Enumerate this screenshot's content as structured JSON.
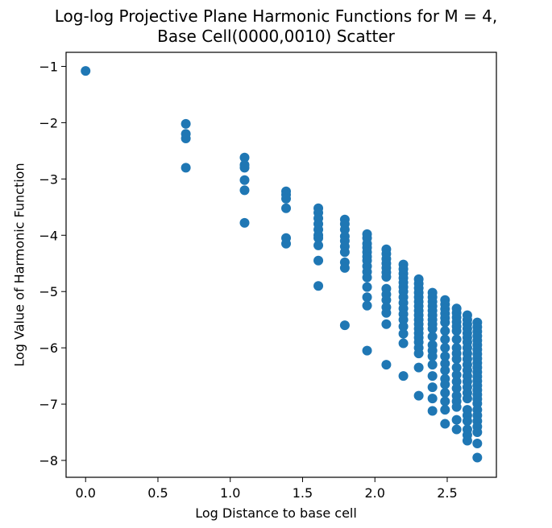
{
  "chart_data": {
    "type": "scatter",
    "title_lines": [
      "Log-log Projective Plane Harmonic Functions for M = 4,",
      "Base Cell(0000,0010) Scatter"
    ],
    "xlabel": "Log Distance to base cell",
    "ylabel": "Log Value of Harmonic Function",
    "xlim": [
      -0.135,
      2.84
    ],
    "ylim": [
      -8.3,
      -0.75
    ],
    "xticks": [
      0.0,
      0.5,
      1.0,
      1.5,
      2.0,
      2.5
    ],
    "xtick_labels": [
      "0.0",
      "0.5",
      "1.0",
      "1.5",
      "2.0",
      "2.5"
    ],
    "yticks": [
      -1,
      -2,
      -3,
      -4,
      -5,
      -6,
      -7,
      -8
    ],
    "ytick_labels": [
      "−1",
      "−2",
      "−3",
      "−4",
      "−5",
      "−6",
      "−7",
      "−8"
    ],
    "grid": false,
    "marker_color": "#1f77b4",
    "series": [
      {
        "points": [
          [
            0.0,
            -1.08
          ],
          [
            0.693,
            -2.02
          ],
          [
            0.693,
            -2.2
          ],
          [
            0.693,
            -2.28
          ],
          [
            0.693,
            -2.8
          ],
          [
            1.099,
            -2.62
          ],
          [
            1.099,
            -2.75
          ],
          [
            1.099,
            -2.8
          ],
          [
            1.099,
            -3.02
          ],
          [
            1.099,
            -3.2
          ],
          [
            1.099,
            -3.78
          ],
          [
            1.386,
            -3.22
          ],
          [
            1.386,
            -3.28
          ],
          [
            1.386,
            -3.35
          ],
          [
            1.386,
            -3.52
          ],
          [
            1.386,
            -4.05
          ],
          [
            1.386,
            -4.15
          ],
          [
            1.609,
            -3.52
          ],
          [
            1.609,
            -3.6
          ],
          [
            1.609,
            -3.7
          ],
          [
            1.609,
            -3.8
          ],
          [
            1.609,
            -3.9
          ],
          [
            1.609,
            -4.0
          ],
          [
            1.609,
            -4.05
          ],
          [
            1.609,
            -4.18
          ],
          [
            1.609,
            -4.45
          ],
          [
            1.609,
            -4.9
          ],
          [
            1.792,
            -3.72
          ],
          [
            1.792,
            -3.8
          ],
          [
            1.792,
            -3.9
          ],
          [
            1.792,
            -4.02
          ],
          [
            1.792,
            -4.1
          ],
          [
            1.792,
            -4.2
          ],
          [
            1.792,
            -4.3
          ],
          [
            1.792,
            -4.48
          ],
          [
            1.792,
            -4.58
          ],
          [
            1.792,
            -5.6
          ],
          [
            1.946,
            -3.98
          ],
          [
            1.946,
            -4.05
          ],
          [
            1.946,
            -4.15
          ],
          [
            1.946,
            -4.22
          ],
          [
            1.946,
            -4.3
          ],
          [
            1.946,
            -4.38
          ],
          [
            1.946,
            -4.45
          ],
          [
            1.946,
            -4.55
          ],
          [
            1.946,
            -4.65
          ],
          [
            1.946,
            -4.75
          ],
          [
            1.946,
            -4.92
          ],
          [
            1.946,
            -5.1
          ],
          [
            1.946,
            -5.25
          ],
          [
            1.946,
            -6.05
          ],
          [
            2.079,
            -4.25
          ],
          [
            2.079,
            -4.33
          ],
          [
            2.079,
            -4.42
          ],
          [
            2.079,
            -4.5
          ],
          [
            2.079,
            -4.58
          ],
          [
            2.079,
            -4.66
          ],
          [
            2.079,
            -4.74
          ],
          [
            2.079,
            -4.95
          ],
          [
            2.079,
            -5.05
          ],
          [
            2.079,
            -5.15
          ],
          [
            2.079,
            -5.28
          ],
          [
            2.079,
            -5.38
          ],
          [
            2.079,
            -5.58
          ],
          [
            2.079,
            -6.3
          ],
          [
            2.197,
            -4.52
          ],
          [
            2.197,
            -4.6
          ],
          [
            2.197,
            -4.68
          ],
          [
            2.197,
            -4.76
          ],
          [
            2.197,
            -4.84
          ],
          [
            2.197,
            -4.92
          ],
          [
            2.197,
            -5.0
          ],
          [
            2.197,
            -5.1
          ],
          [
            2.197,
            -5.2
          ],
          [
            2.197,
            -5.3
          ],
          [
            2.197,
            -5.4
          ],
          [
            2.197,
            -5.5
          ],
          [
            2.197,
            -5.62
          ],
          [
            2.197,
            -5.75
          ],
          [
            2.197,
            -5.92
          ],
          [
            2.197,
            -6.5
          ],
          [
            2.303,
            -4.78
          ],
          [
            2.303,
            -4.86
          ],
          [
            2.303,
            -4.94
          ],
          [
            2.303,
            -5.02
          ],
          [
            2.303,
            -5.1
          ],
          [
            2.303,
            -5.18
          ],
          [
            2.303,
            -5.26
          ],
          [
            2.303,
            -5.34
          ],
          [
            2.303,
            -5.42
          ],
          [
            2.303,
            -5.5
          ],
          [
            2.303,
            -5.58
          ],
          [
            2.303,
            -5.66
          ],
          [
            2.303,
            -5.74
          ],
          [
            2.303,
            -5.82
          ],
          [
            2.303,
            -5.9
          ],
          [
            2.303,
            -6.0
          ],
          [
            2.303,
            -6.1
          ],
          [
            2.303,
            -6.35
          ],
          [
            2.303,
            -6.85
          ],
          [
            2.398,
            -5.02
          ],
          [
            2.398,
            -5.1
          ],
          [
            2.398,
            -5.18
          ],
          [
            2.398,
            -5.26
          ],
          [
            2.398,
            -5.34
          ],
          [
            2.398,
            -5.42
          ],
          [
            2.398,
            -5.5
          ],
          [
            2.398,
            -5.58
          ],
          [
            2.398,
            -5.66
          ],
          [
            2.398,
            -5.8
          ],
          [
            2.398,
            -5.95
          ],
          [
            2.398,
            -6.05
          ],
          [
            2.398,
            -6.15
          ],
          [
            2.398,
            -6.3
          ],
          [
            2.398,
            -6.5
          ],
          [
            2.398,
            -6.7
          ],
          [
            2.398,
            -6.9
          ],
          [
            2.398,
            -7.12
          ],
          [
            2.485,
            -5.15
          ],
          [
            2.485,
            -5.23
          ],
          [
            2.485,
            -5.31
          ],
          [
            2.485,
            -5.39
          ],
          [
            2.485,
            -5.47
          ],
          [
            2.485,
            -5.55
          ],
          [
            2.485,
            -5.7
          ],
          [
            2.485,
            -5.85
          ],
          [
            2.485,
            -6.0
          ],
          [
            2.485,
            -6.15
          ],
          [
            2.485,
            -6.28
          ],
          [
            2.485,
            -6.4
          ],
          [
            2.485,
            -6.55
          ],
          [
            2.485,
            -6.65
          ],
          [
            2.485,
            -6.8
          ],
          [
            2.485,
            -6.95
          ],
          [
            2.485,
            -7.1
          ],
          [
            2.485,
            -7.35
          ],
          [
            2.565,
            -5.3
          ],
          [
            2.565,
            -5.38
          ],
          [
            2.565,
            -5.46
          ],
          [
            2.565,
            -5.54
          ],
          [
            2.565,
            -5.62
          ],
          [
            2.565,
            -5.7
          ],
          [
            2.565,
            -5.85
          ],
          [
            2.565,
            -6.0
          ],
          [
            2.565,
            -6.1
          ],
          [
            2.565,
            -6.2
          ],
          [
            2.565,
            -6.35
          ],
          [
            2.565,
            -6.48
          ],
          [
            2.565,
            -6.6
          ],
          [
            2.565,
            -6.72
          ],
          [
            2.565,
            -6.85
          ],
          [
            2.565,
            -6.95
          ],
          [
            2.565,
            -7.05
          ],
          [
            2.565,
            -7.28
          ],
          [
            2.565,
            -7.45
          ],
          [
            2.639,
            -5.42
          ],
          [
            2.639,
            -5.5
          ],
          [
            2.639,
            -5.58
          ],
          [
            2.639,
            -5.66
          ],
          [
            2.639,
            -5.74
          ],
          [
            2.639,
            -5.82
          ],
          [
            2.639,
            -5.9
          ],
          [
            2.639,
            -6.0
          ],
          [
            2.639,
            -6.1
          ],
          [
            2.639,
            -6.2
          ],
          [
            2.639,
            -6.3
          ],
          [
            2.639,
            -6.4
          ],
          [
            2.639,
            -6.5
          ],
          [
            2.639,
            -6.6
          ],
          [
            2.639,
            -6.7
          ],
          [
            2.639,
            -6.8
          ],
          [
            2.639,
            -6.9
          ],
          [
            2.639,
            -7.1
          ],
          [
            2.639,
            -7.2
          ],
          [
            2.639,
            -7.3
          ],
          [
            2.639,
            -7.45
          ],
          [
            2.639,
            -7.55
          ],
          [
            2.639,
            -7.65
          ],
          [
            2.708,
            -5.55
          ],
          [
            2.708,
            -5.63
          ],
          [
            2.708,
            -5.71
          ],
          [
            2.708,
            -5.79
          ],
          [
            2.708,
            -5.87
          ],
          [
            2.708,
            -5.95
          ],
          [
            2.708,
            -6.03
          ],
          [
            2.708,
            -6.11
          ],
          [
            2.708,
            -6.19
          ],
          [
            2.708,
            -6.27
          ],
          [
            2.708,
            -6.35
          ],
          [
            2.708,
            -6.43
          ],
          [
            2.708,
            -6.51
          ],
          [
            2.708,
            -6.59
          ],
          [
            2.708,
            -6.67
          ],
          [
            2.708,
            -6.75
          ],
          [
            2.708,
            -6.83
          ],
          [
            2.708,
            -6.91
          ],
          [
            2.708,
            -6.99
          ],
          [
            2.708,
            -7.1
          ],
          [
            2.708,
            -7.2
          ],
          [
            2.708,
            -7.3
          ],
          [
            2.708,
            -7.4
          ],
          [
            2.708,
            -7.5
          ],
          [
            2.708,
            -7.7
          ],
          [
            2.708,
            -7.95
          ]
        ]
      }
    ]
  }
}
